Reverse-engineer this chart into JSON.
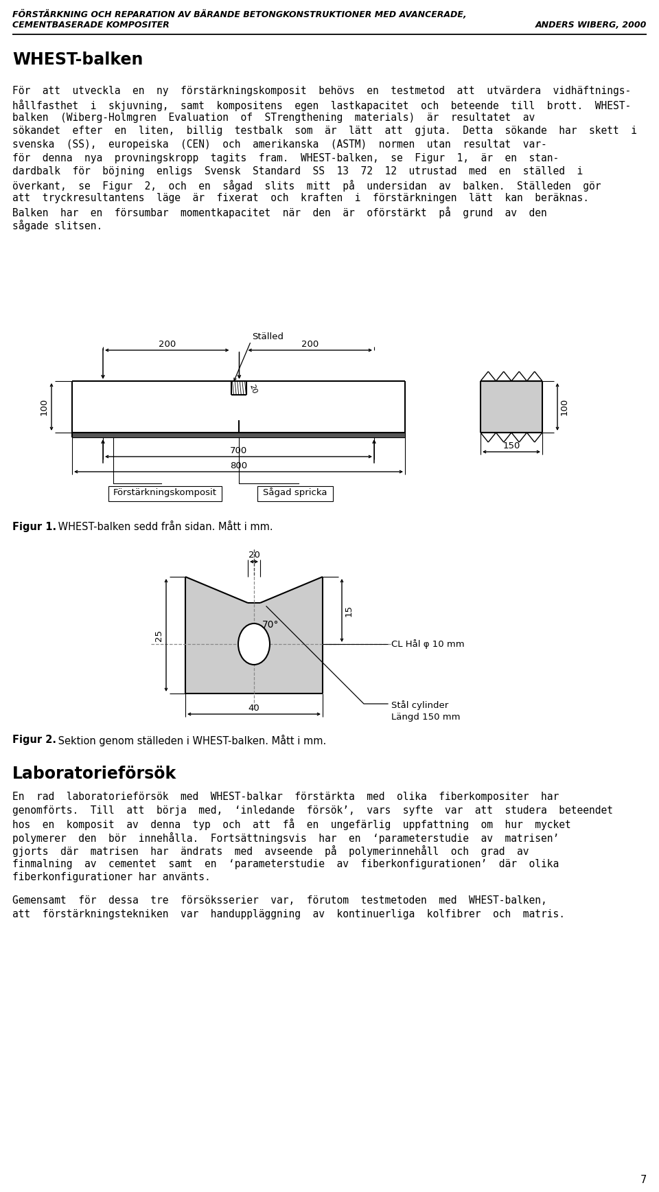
{
  "header_line1": "FÖRSTÄRKNING OCH REPARATION AV BÄRANDE BETONGKONSTRUKTIONER MED AVANCERADE,",
  "header_line2": "CEMENTBASERADE KOMPOSITER",
  "header_right": "ANDERS WIBERG, 2000",
  "page_number": "7",
  "section_title": "WHEST-balken",
  "fig1_caption_bold": "Figur 1.",
  "fig1_caption_rest": " WHEST-balken sedd från sidan. Mått i mm.",
  "fig2_caption_bold": "Figur 2.",
  "fig2_caption_rest": " Sektion genom ställeden i WHEST-balken. Mått i mm.",
  "lab_title": "Laboratorieförsök",
  "bg_color": "#ffffff",
  "text_color": "#000000"
}
